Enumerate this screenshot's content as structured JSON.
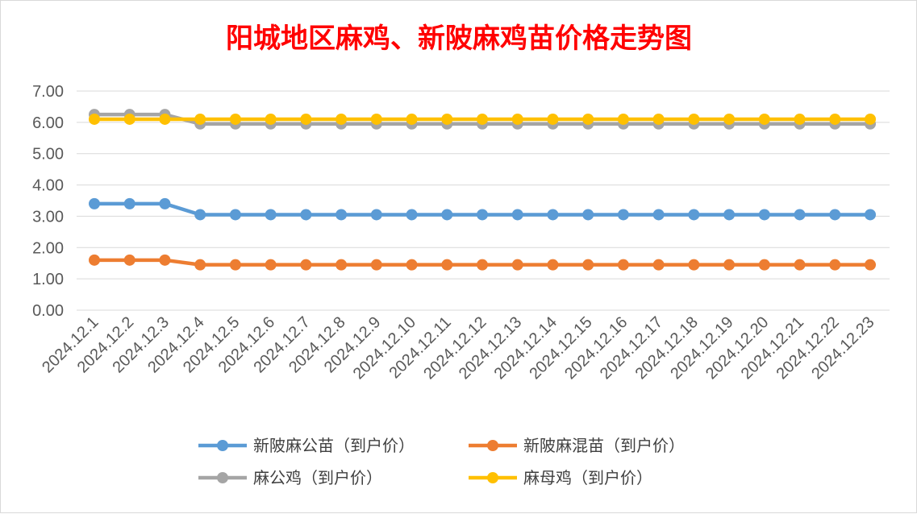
{
  "chart_data": {
    "type": "line",
    "title": "阳城地区麻鸡、新陂麻鸡苗价格走势图",
    "categories": [
      "2024.12.1",
      "2024.12.2",
      "2024.12.3",
      "2024.12.4",
      "2024.12.5",
      "2024.12.6",
      "2024.12.7",
      "2024.12.8",
      "2024.12.9",
      "2024.12.10",
      "2024.12.11",
      "2024.12.12",
      "2024.12.13",
      "2024.12.14",
      "2024.12.15",
      "2024.12.16",
      "2024.12.17",
      "2024.12.18",
      "2024.12.19",
      "2024.12.20",
      "2024.12.21",
      "2024.12.22",
      "2024.12.23"
    ],
    "y_ticks": [
      "0.00",
      "1.00",
      "2.00",
      "3.00",
      "4.00",
      "5.00",
      "6.00",
      "7.00"
    ],
    "ylim": [
      0,
      7
    ],
    "grid": true,
    "legend_position": "bottom",
    "series": [
      {
        "name": "新陂麻公苗（到户价）",
        "color": "#5b9bd5",
        "values": [
          3.4,
          3.4,
          3.4,
          3.05,
          3.05,
          3.05,
          3.05,
          3.05,
          3.05,
          3.05,
          3.05,
          3.05,
          3.05,
          3.05,
          3.05,
          3.05,
          3.05,
          3.05,
          3.05,
          3.05,
          3.05,
          3.05,
          3.05
        ]
      },
      {
        "name": "新陂麻混苗（到户价）",
        "color": "#ed7d31",
        "values": [
          1.6,
          1.6,
          1.6,
          1.45,
          1.45,
          1.45,
          1.45,
          1.45,
          1.45,
          1.45,
          1.45,
          1.45,
          1.45,
          1.45,
          1.45,
          1.45,
          1.45,
          1.45,
          1.45,
          1.45,
          1.45,
          1.45,
          1.45
        ]
      },
      {
        "name": "麻公鸡（到户价）",
        "color": "#a5a5a5",
        "values": [
          6.25,
          6.25,
          6.25,
          5.95,
          5.95,
          5.95,
          5.95,
          5.95,
          5.95,
          5.95,
          5.95,
          5.95,
          5.95,
          5.95,
          5.95,
          5.95,
          5.95,
          5.95,
          5.95,
          5.95,
          5.95,
          5.95,
          5.95
        ]
      },
      {
        "name": "麻母鸡（到户价）",
        "color": "#ffc000",
        "values": [
          6.1,
          6.1,
          6.1,
          6.1,
          6.1,
          6.1,
          6.1,
          6.1,
          6.1,
          6.1,
          6.1,
          6.1,
          6.1,
          6.1,
          6.1,
          6.1,
          6.1,
          6.1,
          6.1,
          6.1,
          6.1,
          6.1,
          6.1
        ]
      }
    ]
  }
}
